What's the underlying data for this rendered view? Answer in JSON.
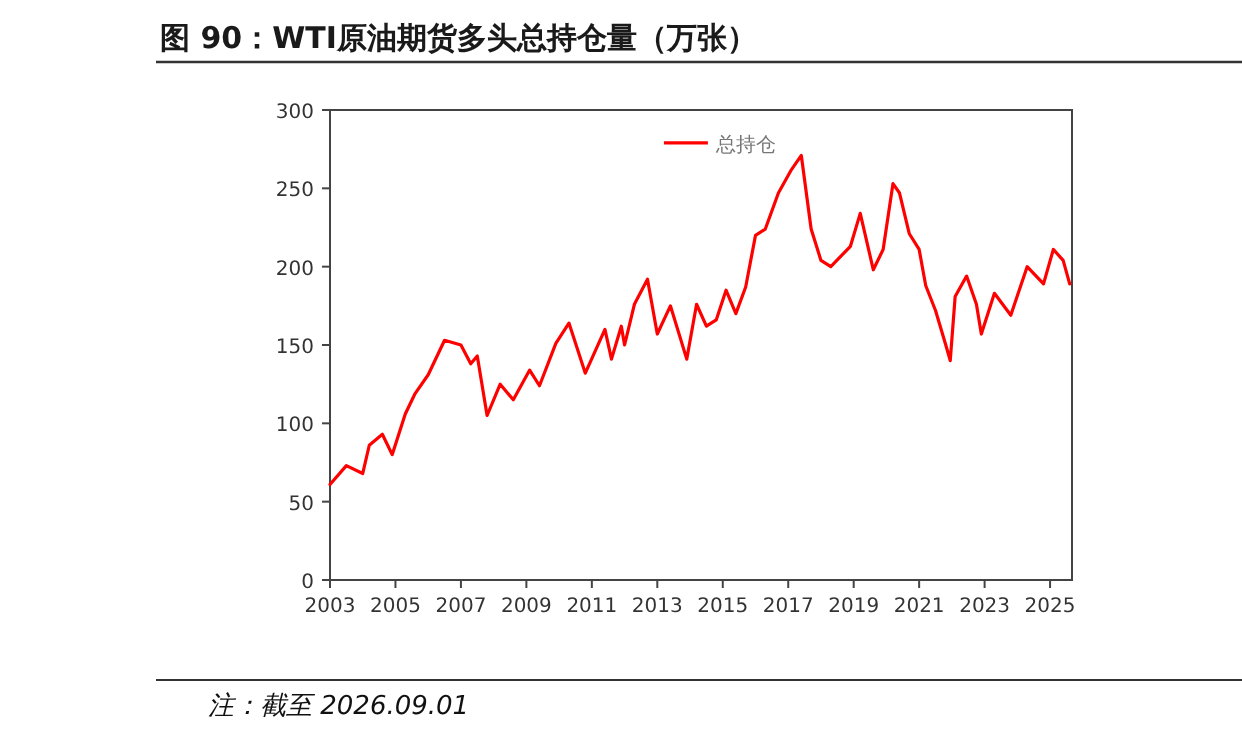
{
  "chart_data": {
    "type": "line",
    "title": "图 90：WTI原油期货多头总持仓量（万张）",
    "annotations": [
      "注：截至 2026.09.01"
    ],
    "xlim": [
      2003,
      2025.67
    ],
    "xticks": [
      2003,
      2005,
      2007,
      2009,
      2011,
      2013,
      2015,
      2017,
      2019,
      2021,
      2023,
      2025
    ],
    "ylim": [
      0,
      300
    ],
    "yticks": [
      0,
      50,
      100,
      150,
      200,
      250,
      300
    ],
    "legend": "top",
    "grid": false,
    "series": [
      {
        "name": "总持仓",
        "color": "#ff0000",
        "x": [
          2003.0,
          2003.5,
          2004.0,
          2004.2,
          2004.6,
          2004.9,
          2005.3,
          2005.6,
          2006.0,
          2006.5,
          2007.0,
          2007.3,
          2007.5,
          2007.8,
          2008.2,
          2008.6,
          2009.1,
          2009.4,
          2009.9,
          2010.3,
          2010.8,
          2011.4,
          2011.6,
          2011.9,
          2012.0,
          2012.3,
          2012.7,
          2013.0,
          2013.4,
          2013.9,
          2014.2,
          2014.5,
          2014.8,
          2015.1,
          2015.4,
          2015.7,
          2016.0,
          2016.3,
          2016.7,
          2017.1,
          2017.4,
          2017.7,
          2018.0,
          2018.3,
          2018.9,
          2019.2,
          2019.6,
          2019.9,
          2020.2,
          2020.4,
          2020.7,
          2021.0,
          2021.2,
          2021.5,
          2021.8,
          2021.95,
          2022.1,
          2022.45,
          2022.75,
          2022.9,
          2023.3,
          2023.8,
          2024.3,
          2024.8,
          2025.1,
          2025.4,
          2025.6
        ],
        "values": [
          61,
          73,
          68,
          86,
          93,
          80,
          106,
          119,
          131,
          153,
          150,
          138,
          143,
          105,
          125,
          115,
          134,
          124,
          151,
          164,
          132,
          160,
          141,
          162,
          150,
          176,
          192,
          157,
          175,
          141,
          176,
          162,
          166,
          185,
          170,
          187,
          220,
          224,
          247,
          262,
          271,
          224,
          204,
          200,
          213,
          234,
          198,
          211,
          253,
          247,
          221,
          211,
          188,
          172,
          151,
          140,
          181,
          194,
          176,
          157,
          183,
          169,
          200,
          189,
          211,
          204,
          189
        ]
      }
    ]
  }
}
